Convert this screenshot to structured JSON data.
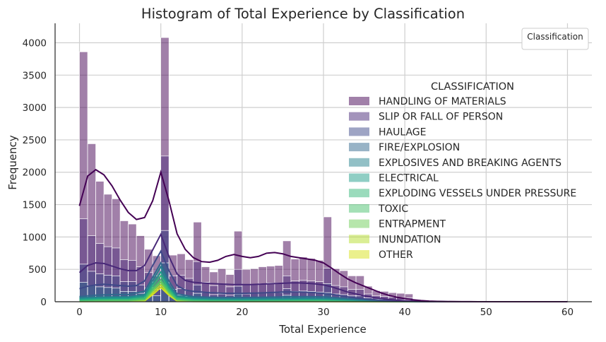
{
  "chart_data": {
    "type": "bar",
    "title": "Histogram of Total Experience by Classification",
    "xlabel": "Total Experience",
    "ylabel": "Frequency",
    "xlim": [
      -3,
      63
    ],
    "ylim": [
      0,
      4300
    ],
    "xticks": [
      0,
      10,
      20,
      30,
      40,
      50,
      60
    ],
    "yticks": [
      0,
      500,
      1000,
      1500,
      2000,
      2500,
      3000,
      3500,
      4000
    ],
    "grid": true,
    "stacked": true,
    "bin_width": 1,
    "bin_starts": [
      0,
      1,
      2,
      3,
      4,
      5,
      6,
      7,
      8,
      9,
      10,
      11,
      12,
      13,
      14,
      15,
      16,
      17,
      18,
      19,
      20,
      21,
      22,
      23,
      24,
      25,
      26,
      27,
      28,
      29,
      30,
      31,
      32,
      33,
      34,
      35,
      36,
      37,
      38,
      39,
      40,
      41
    ],
    "totals": [
      3860,
      2440,
      1860,
      1660,
      1590,
      1250,
      1200,
      1020,
      810,
      710,
      4080,
      720,
      740,
      650,
      1230,
      540,
      460,
      510,
      420,
      1090,
      500,
      510,
      540,
      550,
      560,
      940,
      660,
      690,
      670,
      640,
      1310,
      510,
      480,
      400,
      400,
      240,
      170,
      160,
      140,
      130,
      120,
      20
    ],
    "stack_series": [
      {
        "name": "SLIP OR FALL OF PERSON",
        "values": [
          1280,
          1020,
          900,
          850,
          830,
          650,
          640,
          540,
          450,
          400,
          2250,
          400,
          410,
          360,
          620,
          300,
          250,
          270,
          230,
          500,
          260,
          270,
          280,
          290,
          290,
          400,
          320,
          330,
          320,
          310,
          520,
          250,
          230,
          190,
          190,
          120,
          90,
          80,
          70,
          65,
          60,
          10
        ]
      },
      {
        "name": "HAULAGE",
        "values": [
          580,
          470,
          430,
          410,
          400,
          310,
          310,
          260,
          210,
          190,
          1100,
          190,
          200,
          170,
          260,
          140,
          110,
          120,
          100,
          240,
          120,
          130,
          135,
          140,
          140,
          200,
          160,
          165,
          160,
          150,
          280,
          120,
          110,
          90,
          90,
          60,
          40,
          35,
          30,
          28,
          25,
          5
        ]
      },
      {
        "name": "FIRE/EXPLOSION",
        "values": [
          300,
          250,
          230,
          220,
          210,
          160,
          160,
          130,
          105,
          95,
          600,
          95,
          100,
          85,
          130,
          70,
          55,
          60,
          50,
          120,
          60,
          65,
          68,
          70,
          70,
          100,
          80,
          82,
          80,
          75,
          140,
          60,
          55,
          45,
          45,
          30,
          20,
          18,
          15,
          14,
          12,
          2
        ]
      }
    ],
    "kde_curves": [
      {
        "name": "HANDLING OF MATERIALS",
        "x": [
          0,
          1,
          2,
          3,
          4,
          5,
          6,
          7,
          8,
          9,
          10,
          11,
          12,
          13,
          14,
          15,
          16,
          17,
          18,
          19,
          20,
          21,
          22,
          23,
          24,
          25,
          26,
          27,
          28,
          29,
          30,
          31,
          32,
          33,
          34,
          35,
          36,
          37,
          38,
          39,
          40,
          41,
          42,
          43,
          44,
          45,
          46,
          47,
          48,
          49,
          50,
          52,
          54,
          56,
          58,
          60
        ],
        "y": [
          1480,
          1940,
          2040,
          1960,
          1790,
          1570,
          1380,
          1270,
          1300,
          1560,
          2000,
          1560,
          1050,
          810,
          680,
          620,
          610,
          640,
          700,
          730,
          700,
          680,
          700,
          750,
          760,
          740,
          700,
          680,
          660,
          640,
          600,
          520,
          430,
          350,
          290,
          240,
          190,
          140,
          100,
          70,
          50,
          30,
          18,
          10,
          5,
          3,
          2,
          1,
          1,
          0,
          0,
          0,
          0,
          0,
          0,
          0
        ]
      },
      {
        "name": "SLIP OR FALL OF PERSON",
        "x": [
          0,
          1,
          2,
          3,
          4,
          5,
          6,
          7,
          8,
          9,
          10,
          11,
          12,
          13,
          14,
          15,
          16,
          17,
          18,
          19,
          20,
          21,
          22,
          23,
          24,
          25,
          26,
          27,
          28,
          29,
          30,
          31,
          32,
          33,
          34,
          35,
          36,
          37,
          38,
          39,
          40,
          41,
          42,
          43,
          44,
          45,
          46,
          47,
          48,
          49,
          50,
          52,
          54,
          56,
          58,
          60
        ],
        "y": [
          450,
          560,
          600,
          590,
          550,
          510,
          480,
          480,
          560,
          800,
          1040,
          700,
          430,
          330,
          300,
          290,
          280,
          275,
          270,
          265,
          265,
          265,
          270,
          275,
          280,
          285,
          290,
          290,
          285,
          275,
          260,
          230,
          190,
          150,
          120,
          90,
          70,
          50,
          35,
          25,
          15,
          10,
          6,
          3,
          2,
          1,
          0,
          0,
          0,
          0,
          0,
          0,
          0,
          0,
          0,
          0
        ]
      },
      {
        "name": "HAULAGE",
        "x": [
          0,
          1,
          2,
          3,
          4,
          5,
          6,
          7,
          8,
          9,
          10,
          11,
          12,
          13,
          14,
          15,
          16,
          17,
          18,
          19,
          20,
          21,
          22,
          23,
          24,
          25,
          26,
          27,
          28,
          29,
          30,
          31,
          32,
          33,
          34,
          35,
          36,
          37,
          38,
          39,
          40,
          41,
          42,
          43,
          44,
          45,
          46,
          47,
          48,
          49,
          50,
          52,
          54,
          56,
          58,
          60
        ],
        "y": [
          200,
          240,
          260,
          270,
          260,
          250,
          240,
          250,
          320,
          560,
          780,
          480,
          250,
          180,
          160,
          150,
          140,
          135,
          130,
          130,
          130,
          132,
          135,
          140,
          145,
          150,
          152,
          150,
          145,
          140,
          130,
          115,
          95,
          75,
          60,
          45,
          35,
          25,
          18,
          12,
          8,
          5,
          3,
          2,
          1,
          0,
          0,
          0,
          0,
          0,
          0,
          0,
          0,
          0,
          0,
          0
        ]
      },
      {
        "name": "FIRE/EXPLOSION",
        "x": [
          0,
          2,
          4,
          6,
          8,
          9,
          10,
          11,
          12,
          14,
          16,
          18,
          20,
          22,
          24,
          26,
          28,
          30,
          32,
          34,
          36,
          38,
          40,
          42,
          44,
          46,
          50,
          60
        ],
        "y": [
          80,
          100,
          110,
          110,
          160,
          380,
          600,
          320,
          120,
          80,
          70,
          65,
          65,
          68,
          72,
          78,
          80,
          75,
          60,
          40,
          25,
          15,
          8,
          3,
          1,
          0,
          0,
          0
        ]
      },
      {
        "name": "EXPLOSIVES AND BREAKING AGENTS",
        "x": [
          0,
          2,
          4,
          6,
          8,
          9,
          10,
          11,
          12,
          14,
          16,
          20,
          24,
          28,
          30,
          34,
          38,
          42,
          46,
          50,
          60
        ],
        "y": [
          60,
          70,
          75,
          75,
          110,
          330,
          540,
          260,
          90,
          60,
          50,
          48,
          50,
          55,
          52,
          30,
          12,
          3,
          0,
          0,
          0
        ]
      },
      {
        "name": "ELECTRICAL",
        "x": [
          0,
          2,
          4,
          6,
          8,
          9,
          10,
          11,
          12,
          14,
          16,
          20,
          24,
          28,
          30,
          34,
          38,
          42,
          46,
          50,
          60
        ],
        "y": [
          40,
          50,
          55,
          55,
          85,
          280,
          460,
          220,
          70,
          45,
          38,
          36,
          38,
          42,
          40,
          24,
          10,
          2,
          0,
          0,
          0
        ]
      },
      {
        "name": "EXPLODING VESSELS UNDER PRESSURE",
        "x": [
          0,
          2,
          4,
          6,
          8,
          9,
          10,
          11,
          12,
          14,
          16,
          20,
          24,
          28,
          30,
          34,
          38,
          42,
          46,
          50,
          60
        ],
        "y": [
          30,
          35,
          38,
          38,
          60,
          240,
          400,
          190,
          50,
          32,
          28,
          26,
          28,
          30,
          28,
          16,
          6,
          1,
          0,
          0,
          0
        ]
      },
      {
        "name": "TOXIC",
        "x": [
          0,
          2,
          4,
          6,
          8,
          9,
          10,
          11,
          12,
          14,
          16,
          20,
          24,
          28,
          30,
          34,
          38,
          42,
          46,
          50,
          60
        ],
        "y": [
          20,
          24,
          26,
          26,
          45,
          200,
          340,
          160,
          38,
          22,
          18,
          17,
          18,
          20,
          18,
          10,
          4,
          1,
          0,
          0,
          0
        ]
      },
      {
        "name": "ENTRAPMENT",
        "x": [
          0,
          2,
          4,
          6,
          8,
          9,
          10,
          11,
          12,
          14,
          16,
          20,
          24,
          28,
          30,
          34,
          38,
          42,
          46,
          50,
          60
        ],
        "y": [
          12,
          14,
          16,
          16,
          30,
          170,
          300,
          140,
          28,
          14,
          12,
          11,
          12,
          13,
          12,
          6,
          2,
          0,
          0,
          0,
          0
        ]
      },
      {
        "name": "INUNDATION",
        "x": [
          0,
          2,
          4,
          6,
          8,
          9,
          10,
          11,
          12,
          14,
          16,
          20,
          24,
          28,
          30,
          34,
          38,
          42,
          46,
          50,
          60
        ],
        "y": [
          6,
          8,
          9,
          9,
          20,
          140,
          260,
          120,
          20,
          8,
          6,
          6,
          7,
          7,
          6,
          3,
          1,
          0,
          0,
          0,
          0
        ]
      },
      {
        "name": "OTHER",
        "x": [
          0,
          2,
          4,
          6,
          8,
          9,
          10,
          11,
          12,
          14,
          16,
          20,
          24,
          28,
          30,
          34,
          38,
          42,
          46,
          50,
          60
        ],
        "y": [
          3,
          4,
          4,
          4,
          12,
          110,
          220,
          100,
          12,
          4,
          3,
          3,
          3,
          3,
          3,
          1,
          0,
          0,
          0,
          0,
          0
        ]
      }
    ],
    "legend_title": "CLASSIFICATION",
    "legend": [
      {
        "name": "HANDLING OF MATERIALS",
        "color": "#440154"
      },
      {
        "name": "SLIP OR FALL OF PERSON",
        "color": "#482878"
      },
      {
        "name": "HAULAGE",
        "color": "#3e4989"
      },
      {
        "name": "FIRE/EXPLOSION",
        "color": "#31688e"
      },
      {
        "name": "EXPLOSIVES AND BREAKING AGENTS",
        "color": "#26828e"
      },
      {
        "name": "ELECTRICAL",
        "color": "#1f9e89"
      },
      {
        "name": "EXPLODING VESSELS UNDER PRESSURE",
        "color": "#35b779"
      },
      {
        "name": "TOXIC",
        "color": "#4ac16d"
      },
      {
        "name": "ENTRAPMENT",
        "color": "#6ece58"
      },
      {
        "name": "INUNDATION",
        "color": "#b5de2b"
      },
      {
        "name": "OTHER",
        "color": "#d8e219"
      }
    ],
    "legend_position": "right",
    "secondary_legend_title": "Classification",
    "secondary_legend_position": "top-right"
  }
}
